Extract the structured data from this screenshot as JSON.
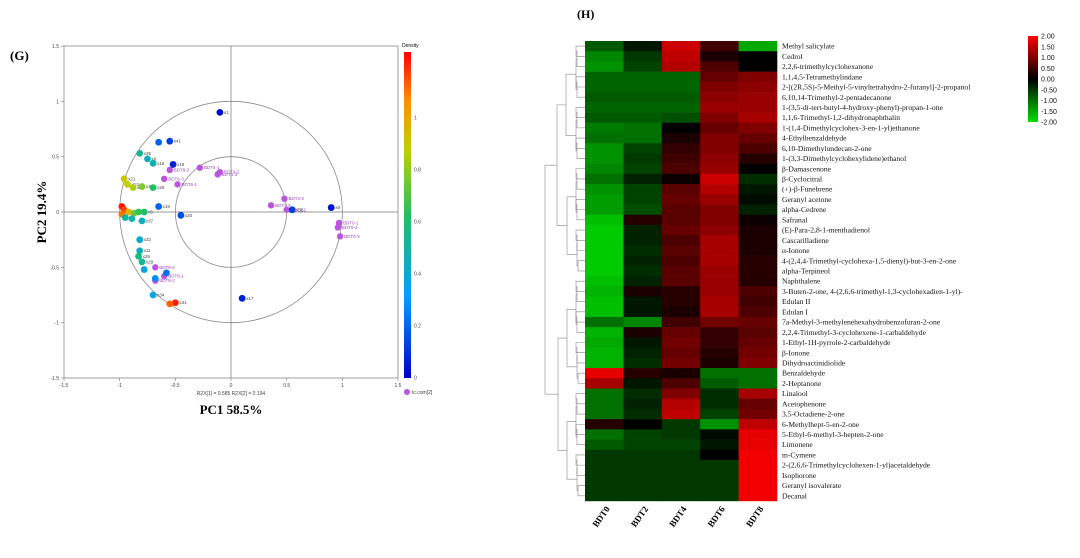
{
  "chart_data": [
    {
      "type": "scatter",
      "panel_label": "(G)",
      "xlabel": "PC1 58.5%",
      "ylabel": "PC2 19.4%",
      "sublabel": "R2X[1] = 0.585  R2X[2] = 0.194",
      "xlim": [
        -1.5,
        1.5
      ],
      "ylim": [
        -1.5,
        1.5
      ],
      "x_ticks": [
        "-1.5",
        "-1",
        "-0.5",
        "0",
        "0.5",
        "1",
        "1.5"
      ],
      "y_ticks": [
        "-1.5",
        "-1",
        "-0.5",
        "0",
        "0.5",
        "1",
        "1.5"
      ],
      "colorbar": {
        "title": "Density",
        "ticks": [
          "1",
          "0.8",
          "0.6",
          "0.4",
          "0.2",
          "0"
        ]
      },
      "legend": "tc.com[2]",
      "circle_radii": [
        0.5,
        1.0
      ],
      "variables": [
        {
          "label": "x1",
          "x": -0.1,
          "y": 0.9,
          "d": 0.02
        },
        {
          "label": "x41",
          "x": -0.55,
          "y": 0.64,
          "d": 0.1
        },
        {
          "label": "",
          "x": -0.65,
          "y": 0.63,
          "d": 0.15
        },
        {
          "label": "x35",
          "x": -0.82,
          "y": 0.53,
          "d": 0.42
        },
        {
          "label": "x6",
          "x": -0.75,
          "y": 0.48,
          "d": 0.35
        },
        {
          "label": "x16",
          "x": -0.7,
          "y": 0.44,
          "d": 0.38
        },
        {
          "label": "x18",
          "x": -0.52,
          "y": 0.43,
          "d": 0.05
        },
        {
          "label": "x21",
          "x": -0.96,
          "y": 0.3,
          "d": 0.72
        },
        {
          "label": "x13",
          "x": -0.93,
          "y": 0.25,
          "d": 0.7
        },
        {
          "label": "x7",
          "x": -0.88,
          "y": 0.22,
          "d": 0.68
        },
        {
          "label": "x30",
          "x": -0.8,
          "y": 0.23,
          "d": 0.62
        },
        {
          "label": "x26",
          "x": -0.7,
          "y": 0.22,
          "d": 0.5
        },
        {
          "label": "",
          "x": -0.98,
          "y": 0.05,
          "d": 0.98
        },
        {
          "label": "",
          "x": -0.96,
          "y": 0.02,
          "d": 0.93
        },
        {
          "label": "",
          "x": -0.98,
          "y": -0.02,
          "d": 0.88
        },
        {
          "label": "x31",
          "x": -0.92,
          "y": 0.0,
          "d": 0.76
        },
        {
          "label": "",
          "x": -0.87,
          "y": -0.01,
          "d": 0.6
        },
        {
          "label": "",
          "x": -0.83,
          "y": 0.0,
          "d": 0.52
        },
        {
          "label": "x5",
          "x": -0.78,
          "y": 0.0,
          "d": 0.48
        },
        {
          "label": "x19",
          "x": -0.65,
          "y": 0.05,
          "d": 0.15
        },
        {
          "label": "x20",
          "x": -0.45,
          "y": -0.03,
          "d": 0.12
        },
        {
          "label": "",
          "x": -0.95,
          "y": -0.05,
          "d": 0.4
        },
        {
          "label": "",
          "x": -0.89,
          "y": -0.06,
          "d": 0.38
        },
        {
          "label": "x37",
          "x": -0.8,
          "y": -0.08,
          "d": 0.35
        },
        {
          "label": "x32",
          "x": -0.82,
          "y": -0.25,
          "d": 0.32
        },
        {
          "label": "x11",
          "x": -0.82,
          "y": -0.35,
          "d": 0.36
        },
        {
          "label": "x28",
          "x": -0.83,
          "y": -0.4,
          "d": 0.45
        },
        {
          "label": "x29",
          "x": -0.8,
          "y": -0.45,
          "d": 0.42
        },
        {
          "label": "",
          "x": -0.78,
          "y": -0.52,
          "d": 0.3
        },
        {
          "label": "",
          "x": -0.58,
          "y": -0.55,
          "d": 0.18
        },
        {
          "label": "",
          "x": -0.68,
          "y": -0.6,
          "d": 0.22
        },
        {
          "label": "x34",
          "x": -0.7,
          "y": -0.75,
          "d": 0.3
        },
        {
          "label": "x31",
          "x": -0.5,
          "y": -0.82,
          "d": 0.97
        },
        {
          "label": "",
          "x": -0.55,
          "y": -0.83,
          "d": 0.9
        },
        {
          "label": "x17",
          "x": 0.1,
          "y": -0.78,
          "d": 0.05
        },
        {
          "label": "x8",
          "x": 0.9,
          "y": 0.04,
          "d": 0.03
        },
        {
          "label": "x36",
          "x": 0.55,
          "y": 0.02,
          "d": 0.1
        }
      ],
      "observations": [
        {
          "label": "BDT4-1",
          "x": -0.28,
          "y": 0.4
        },
        {
          "label": "BDT4-2",
          "x": -0.1,
          "y": 0.36
        },
        {
          "label": "BDT4-3",
          "x": -0.12,
          "y": 0.34
        },
        {
          "label": "BDT6-3",
          "x": -0.6,
          "y": 0.3
        },
        {
          "label": "BDT6-2",
          "x": -0.55,
          "y": 0.38
        },
        {
          "label": "BDT6-1",
          "x": -0.48,
          "y": 0.25
        },
        {
          "label": "BDT2-2",
          "x": 0.48,
          "y": 0.12
        },
        {
          "label": "BDT2-3",
          "x": 0.36,
          "y": 0.06
        },
        {
          "label": "BDT2-1",
          "x": 0.5,
          "y": 0.02
        },
        {
          "label": "BDT0-1",
          "x": 0.97,
          "y": -0.1
        },
        {
          "label": "BDT0-2",
          "x": 0.96,
          "y": -0.14
        },
        {
          "label": "BDT0-3",
          "x": 0.98,
          "y": -0.22
        },
        {
          "label": "BDT8-3",
          "x": -0.68,
          "y": -0.5
        },
        {
          "label": "BDT8-1",
          "x": -0.6,
          "y": -0.58
        },
        {
          "label": "BDT8-2",
          "x": -0.68,
          "y": -0.62
        }
      ]
    },
    {
      "type": "heatmap",
      "panel_label": "(H)",
      "columns": [
        "BDT0",
        "BDT2",
        "BDT4",
        "BDT6",
        "BDT8"
      ],
      "colorbar": {
        "min": -2.0,
        "max": 2.0,
        "ticks": [
          "2.00",
          "1.50",
          "1.00",
          "0.50",
          "0.00",
          "-0.50",
          "-1.00",
          "-1.50",
          "-2.00"
        ]
      },
      "rows": [
        "Methyl salicylate",
        "Cedrol",
        "2,2,6-trimethylcyclohexanone",
        "1,1,4,5-Tetramethylindane",
        "2-[(2R,5S)-5-Methyl-5-vinyltetrahydro-2-furanyl]-2-propanol",
        "6,10,14-Trimethyl-2-pentadecanone",
        "1-(3,5-di-tert-butyl-4-hydroxy-phenyl)-propan-1-one",
        "1,1,6-Trimethyl-1,2-dihydronaphthalin",
        "1-(1,4-Dimethylcyclohex-3-en-1-yl)ethanone",
        "4-Ethylbenzaldehyde",
        "6,10-Dimethylundecan-2-one",
        "1-(3,3-Dimethylcyclohexylidene)ethanol",
        "β-Damascenone",
        "β-Cyclocitral",
        "(+)-β-Funebrene",
        "Geranyl acetone",
        "alpha-Cedrene",
        "Safranal",
        "(E)-Para-2,8-1-menthadienol",
        "Cascarilladiene",
        "α-Ionone",
        "4-(2,4,4-Trimethyl-cyclohexa-1,5-dienyl)-but-3-en-2-one",
        "alpha-Terpineol",
        "Naphthalene",
        "3-Buten-2-one, 4-(2,6,6-trimethyl-1,3-cyclohexadien-1-yl)-",
        "Edulan II",
        "Edulan I",
        "7a-Methyl-3-methylenehexahydrobenzofuran-2-one",
        "2,2,4-Trimethyl-3-cyclohexene-1-carbaldehyde",
        "1-Ethyl-1H-pyrrole-2-carbaldehyde",
        "β-Ionone",
        "Dihydroactinidiolide",
        "Benzaldehyde",
        "2-Heptanone",
        "Linalool",
        "Acetophenone",
        "3,5-Octadiene-2-one",
        "6-Methylhept-5-en-2-one",
        "5-Ethyl-6-methyl-3-hepten-2-one",
        "Limonene",
        "m-Cymene",
        "2-(2,6,6-Trimethylcyclohexen-1-yl)acetaldehyde",
        "Isophorone",
        "Geranyl isovalerate",
        "Decanal"
      ],
      "values": [
        [
          -0.8,
          -0.2,
          1.6,
          0.5,
          -1.5
        ],
        [
          -1.2,
          -0.5,
          1.5,
          0.2,
          0.0
        ],
        [
          -1.3,
          -0.6,
          1.4,
          0.6,
          0.0
        ],
        [
          -0.9,
          -0.9,
          -0.9,
          0.8,
          1.0
        ],
        [
          -0.9,
          -0.9,
          -0.9,
          1.0,
          1.1
        ],
        [
          -0.8,
          -0.8,
          -0.8,
          1.1,
          1.2
        ],
        [
          -0.9,
          -0.9,
          -0.9,
          1.2,
          1.2
        ],
        [
          -0.8,
          -0.8,
          -0.7,
          1.0,
          1.3
        ],
        [
          -1.1,
          -1.0,
          0.0,
          0.8,
          1.0
        ],
        [
          -1.0,
          -1.0,
          0.2,
          1.0,
          0.8
        ],
        [
          -1.3,
          -0.6,
          0.4,
          1.0,
          0.6
        ],
        [
          -1.3,
          -0.5,
          0.5,
          1.1,
          0.3
        ],
        [
          -1.2,
          -0.6,
          0.6,
          1.2,
          0.0
        ],
        [
          -1.0,
          -0.3,
          0.1,
          1.6,
          -0.4
        ],
        [
          -1.3,
          -0.6,
          0.7,
          1.4,
          -0.2
        ],
        [
          -1.4,
          -0.6,
          0.8,
          1.2,
          -0.1
        ],
        [
          -1.4,
          -0.7,
          0.7,
          1.0,
          -0.3
        ],
        [
          -1.7,
          0.3,
          0.7,
          1.0,
          0.1
        ],
        [
          -1.8,
          -0.3,
          0.8,
          1.1,
          0.2
        ],
        [
          -1.8,
          -0.3,
          0.6,
          1.3,
          0.2
        ],
        [
          -1.8,
          -0.4,
          0.7,
          1.3,
          0.2
        ],
        [
          -1.8,
          -0.3,
          0.6,
          1.3,
          0.3
        ],
        [
          -1.8,
          -0.4,
          0.7,
          1.2,
          0.3
        ],
        [
          -1.7,
          -0.3,
          0.7,
          1.2,
          0.3
        ],
        [
          -1.6,
          0.2,
          0.3,
          1.2,
          0.6
        ],
        [
          -1.7,
          -0.2,
          0.3,
          1.3,
          0.5
        ],
        [
          -1.7,
          -0.2,
          0.2,
          1.3,
          0.6
        ],
        [
          -1.0,
          -1.2,
          0.5,
          0.9,
          0.8
        ],
        [
          -1.6,
          0.2,
          0.8,
          0.4,
          0.7
        ],
        [
          -1.5,
          -0.2,
          0.9,
          0.4,
          0.8
        ],
        [
          -1.6,
          -0.3,
          0.8,
          0.3,
          0.9
        ],
        [
          -1.6,
          -0.4,
          0.9,
          0.2,
          1.0
        ],
        [
          1.8,
          0.3,
          0.2,
          -1.0,
          -1.0
        ],
        [
          1.3,
          -0.2,
          0.6,
          -0.8,
          -1.0
        ],
        [
          -1.0,
          -0.4,
          1.0,
          -0.4,
          1.3
        ],
        [
          -1.0,
          -0.3,
          1.4,
          -0.4,
          0.8
        ],
        [
          -1.0,
          -0.4,
          1.5,
          -0.6,
          0.9
        ],
        [
          0.3,
          0.0,
          -0.5,
          -1.3,
          1.5
        ],
        [
          -1.0,
          -0.6,
          -0.5,
          -0.1,
          1.8
        ],
        [
          -0.8,
          -0.6,
          -0.6,
          -0.2,
          1.8
        ],
        [
          -0.5,
          -0.5,
          -0.5,
          0.0,
          1.9
        ],
        [
          -0.5,
          -0.5,
          -0.5,
          -0.5,
          1.9
        ],
        [
          -0.5,
          -0.5,
          -0.5,
          -0.5,
          1.9
        ],
        [
          -0.5,
          -0.5,
          -0.5,
          -0.5,
          1.9
        ],
        [
          -0.5,
          -0.5,
          -0.5,
          -0.5,
          1.9
        ]
      ]
    }
  ]
}
